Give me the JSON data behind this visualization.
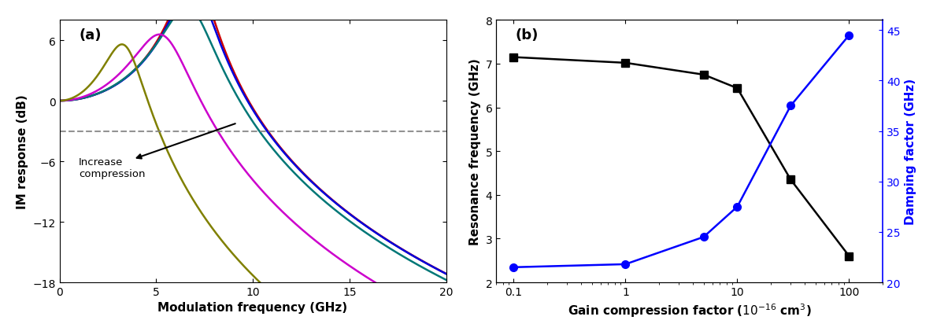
{
  "panel_a": {
    "title": "(a)",
    "xlabel": "Modulation frequency (GHz)",
    "ylabel": "IM response (dB)",
    "xlim": [
      0,
      20
    ],
    "ylim": [
      -18,
      8
    ],
    "yticks": [
      6,
      0,
      -6,
      -12,
      -18
    ],
    "xticks": [
      0,
      5,
      10,
      15,
      20
    ],
    "dashed_line_y": -3.0,
    "curves": [
      {
        "color": "#cc0000",
        "fr": 7.0,
        "K": 0.18
      },
      {
        "color": "#0000dd",
        "fr": 7.0,
        "K": 0.22
      },
      {
        "color": "#007777",
        "fr": 6.8,
        "K": 0.3
      },
      {
        "color": "#cc00cc",
        "fr": 5.5,
        "K": 0.52
      },
      {
        "color": "#808000",
        "fr": 3.5,
        "K": 0.9
      }
    ]
  },
  "panel_b": {
    "title": "(b)",
    "xlabel": "Gain compression factor ($10^{-16}$ cm$^3$)",
    "ylabel_left": "Resonance frequency (GHz)",
    "ylabel_right": "Damping factor (GHz)",
    "ylim_left": [
      2,
      8
    ],
    "ylim_right": [
      20,
      46
    ],
    "yticks_left": [
      2,
      3,
      4,
      5,
      6,
      7,
      8
    ],
    "yticks_right": [
      20,
      25,
      30,
      35,
      40,
      45
    ],
    "x_data": [
      0.1,
      1.0,
      5.0,
      10.0,
      30.0,
      100.0
    ],
    "resonance_freq": [
      7.15,
      7.02,
      6.75,
      6.44,
      4.35,
      2.6
    ],
    "damping_factor": [
      21.5,
      21.8,
      24.5,
      27.5,
      37.5,
      44.5
    ]
  }
}
